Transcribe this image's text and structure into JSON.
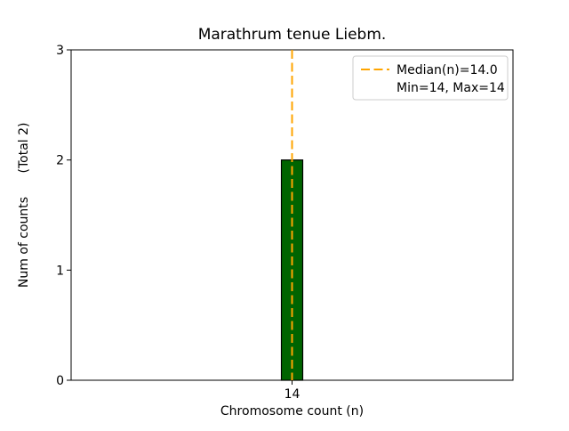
{
  "chart_data": {
    "type": "bar",
    "title": "Marathrum tenue Liebm.",
    "categories": [
      "14"
    ],
    "values": [
      2
    ],
    "xlabel": "Chromosome count (n)",
    "ylabel": "Num of counts",
    "ylabel_note": "(Total 2)",
    "total_counts": 2,
    "ylim": [
      0,
      3
    ],
    "yticks": [
      0,
      1,
      2,
      3
    ],
    "bar_color": "#006400",
    "bar_edge_color": "#000000",
    "median": {
      "value": 14.0,
      "line_color": "#ffa500",
      "line_style": "dashed"
    },
    "min": 14,
    "max": 14,
    "legend": {
      "position": "upper right",
      "entries": [
        {
          "label": "Median(n)=14.0",
          "handle": "dashed-line",
          "color": "#ffa500"
        },
        {
          "label": "Min=14, Max=14",
          "handle": "none"
        }
      ]
    },
    "grid": false
  }
}
